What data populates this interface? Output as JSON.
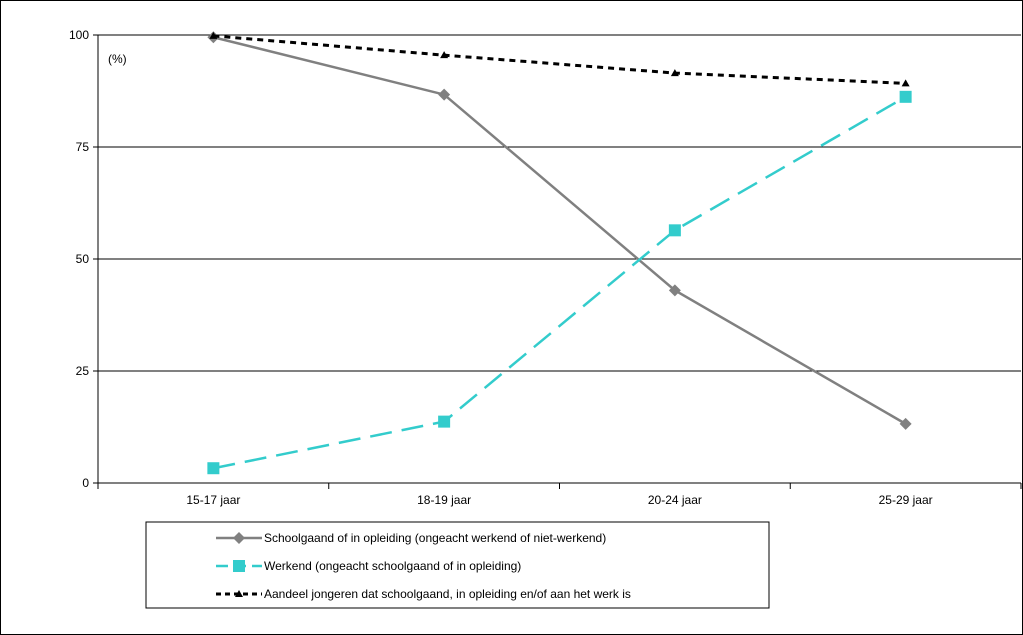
{
  "chart_data": {
    "type": "line",
    "ylabel": "(%)",
    "ylim": [
      0,
      100
    ],
    "yticks": [
      "0",
      "25",
      "50",
      "75",
      "100"
    ],
    "categories": [
      "15-17 jaar",
      "18-19 jaar",
      "20-24 jaar",
      "25-29 jaar"
    ],
    "grid": "horizontal",
    "legend_position": "bottom-left",
    "series": [
      {
        "name": "Schoolgaand of in opleiding (ongeacht werkend of niet-werkend)",
        "values": [
          99.5,
          86.7,
          43.0,
          13.2
        ],
        "color": "#808080",
        "marker": "diamond",
        "style": "solid"
      },
      {
        "name": "Werkend (ongeacht schoolgaand of in opleiding)",
        "values": [
          3.3,
          13.7,
          56.4,
          86.2
        ],
        "color": "#33cccc",
        "marker": "square",
        "style": "dashed"
      },
      {
        "name": "Aandeel jongeren dat schoolgaand, in opleiding en/of aan het werk is",
        "values": [
          99.8,
          95.5,
          91.5,
          89.2
        ],
        "color": "#000000",
        "marker": "triangle",
        "style": "dotted"
      }
    ]
  }
}
